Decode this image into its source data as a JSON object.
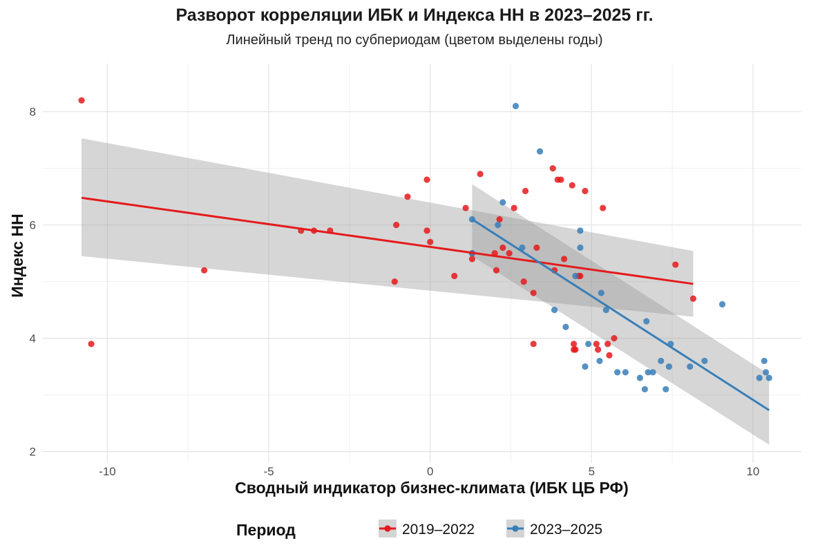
{
  "title": "Разворот корреляции ИБК и Индекса НН в 2023–2025 гг.",
  "subtitle": "Линейный тренд по субпериодам (цветом выделены годы)",
  "chart_data": {
    "type": "scatter",
    "title": "Разворот корреляции ИБК и Индекса НН в 2023–2025 гг.",
    "subtitle": "Линейный тренд по субпериодам (цветом выделены годы)",
    "xlabel": "Сводный индикатор бизнес-климата (ИБК ЦБ РФ)",
    "ylabel": "Индекс НН",
    "xlim": [
      -12.0,
      11.5
    ],
    "ylim": [
      1.8,
      8.85
    ],
    "x_ticks": [
      -10,
      -5,
      0,
      5,
      10
    ],
    "x_tick_labels": [
      "-10",
      "-5",
      "0",
      "5",
      "10"
    ],
    "y_ticks": [
      2,
      4,
      6,
      8
    ],
    "y_tick_labels": [
      "2",
      "4",
      "6",
      "8"
    ],
    "grid": true,
    "legend": {
      "title": "Период",
      "position": "bottom"
    },
    "series": [
      {
        "name": "2019–2022",
        "color": "#e41a1c",
        "points": [
          [
            -10.8,
            8.2
          ],
          [
            -10.5,
            3.9
          ],
          [
            -7.0,
            5.2
          ],
          [
            -4.0,
            5.9
          ],
          [
            -3.6,
            5.9
          ],
          [
            -3.1,
            5.9
          ],
          [
            -1.1,
            5.0
          ],
          [
            -1.05,
            6.0
          ],
          [
            -0.7,
            6.5
          ],
          [
            -0.1,
            6.8
          ],
          [
            -0.1,
            5.9
          ],
          [
            0.0,
            5.7
          ],
          [
            0.75,
            5.1
          ],
          [
            1.1,
            6.3
          ],
          [
            1.3,
            5.4
          ],
          [
            1.3,
            5.5
          ],
          [
            1.55,
            6.9
          ],
          [
            2.0,
            5.5
          ],
          [
            2.05,
            5.2
          ],
          [
            2.15,
            6.1
          ],
          [
            2.25,
            5.6
          ],
          [
            2.45,
            5.5
          ],
          [
            2.6,
            6.3
          ],
          [
            2.9,
            5.0
          ],
          [
            2.95,
            6.6
          ],
          [
            3.2,
            4.8
          ],
          [
            3.2,
            3.9
          ],
          [
            3.3,
            5.6
          ],
          [
            3.8,
            7.0
          ],
          [
            3.85,
            5.2
          ],
          [
            3.95,
            6.8
          ],
          [
            4.05,
            6.8
          ],
          [
            4.15,
            5.4
          ],
          [
            4.4,
            6.7
          ],
          [
            4.45,
            3.8
          ],
          [
            4.45,
            3.9
          ],
          [
            4.5,
            3.8
          ],
          [
            4.6,
            5.1
          ],
          [
            4.65,
            5.1
          ],
          [
            4.8,
            6.6
          ],
          [
            5.15,
            3.9
          ],
          [
            5.2,
            3.8
          ],
          [
            5.35,
            6.3
          ],
          [
            5.5,
            3.9
          ],
          [
            5.55,
            3.7
          ],
          [
            5.7,
            4.0
          ],
          [
            7.6,
            5.3
          ],
          [
            8.15,
            4.7
          ]
        ],
        "trend": {
          "x": [
            -10.8,
            8.15
          ],
          "y": [
            6.48,
            4.96
          ],
          "ci_low": [
            5.45,
            4.38
          ],
          "ci_high": [
            7.53,
            5.54
          ]
        }
      },
      {
        "name": "2023–2025",
        "color": "#377eb8",
        "points": [
          [
            1.3,
            6.1
          ],
          [
            1.3,
            5.5
          ],
          [
            2.1,
            6.0
          ],
          [
            2.25,
            6.4
          ],
          [
            2.65,
            8.1
          ],
          [
            2.85,
            5.6
          ],
          [
            3.4,
            7.3
          ],
          [
            3.85,
            4.5
          ],
          [
            4.2,
            4.2
          ],
          [
            4.5,
            5.1
          ],
          [
            4.65,
            5.9
          ],
          [
            4.65,
            5.6
          ],
          [
            4.8,
            3.5
          ],
          [
            4.9,
            3.9
          ],
          [
            5.25,
            3.6
          ],
          [
            5.3,
            4.8
          ],
          [
            5.45,
            4.5
          ],
          [
            5.8,
            3.4
          ],
          [
            6.05,
            3.4
          ],
          [
            6.5,
            3.3
          ],
          [
            6.65,
            3.1
          ],
          [
            6.7,
            4.3
          ],
          [
            6.75,
            3.4
          ],
          [
            6.9,
            3.4
          ],
          [
            7.15,
            3.6
          ],
          [
            7.3,
            3.1
          ],
          [
            7.4,
            3.5
          ],
          [
            7.45,
            3.9
          ],
          [
            8.05,
            3.5
          ],
          [
            8.5,
            3.6
          ],
          [
            9.05,
            4.6
          ],
          [
            10.2,
            3.3
          ],
          [
            10.35,
            3.6
          ],
          [
            10.4,
            3.4
          ],
          [
            10.5,
            3.3
          ]
        ],
        "trend": {
          "x": [
            1.3,
            10.5
          ],
          "y": [
            6.1,
            2.73
          ],
          "ci_low": [
            5.45,
            2.12
          ],
          "ci_high": [
            6.72,
            3.36
          ]
        }
      }
    ]
  }
}
